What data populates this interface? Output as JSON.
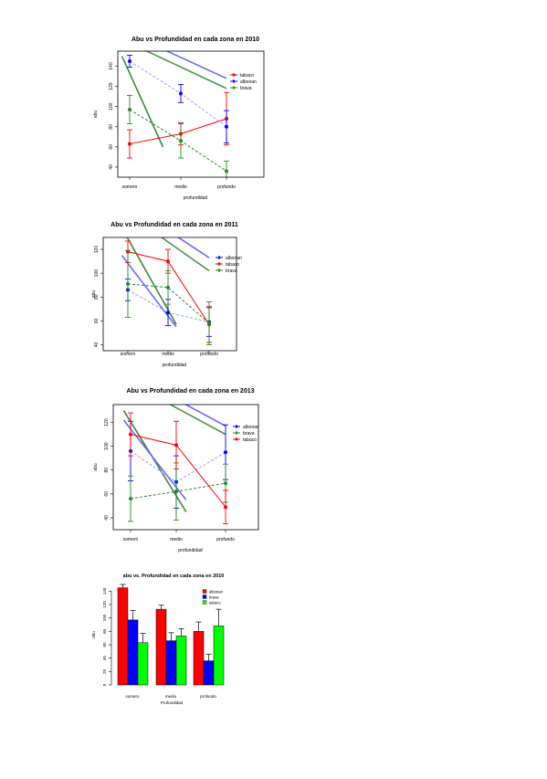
{
  "chart_data": [
    {
      "type": "line",
      "title": "Abu vs Profundidad en cada zona en 2010",
      "xlabel": "profundidad",
      "ylabel": "abu",
      "categories": [
        "somero",
        "medio",
        "profundo"
      ],
      "ylim": [
        30,
        155
      ],
      "yticks": [
        40,
        60,
        80,
        100,
        120,
        140
      ],
      "legend_position": "top-right",
      "series": [
        {
          "name": "tabaco",
          "color": "#ff0000",
          "dash": false,
          "values": [
            63,
            73,
            88
          ],
          "err": [
            14,
            11,
            26
          ]
        },
        {
          "name": "albonan",
          "color": "#0000ff",
          "dash": true,
          "values": [
            145,
            113,
            80
          ],
          "err": [
            6,
            9,
            16
          ]
        },
        {
          "name": "brava",
          "color": "#228b22",
          "dash": true,
          "values": [
            97,
            66,
            36
          ],
          "err": [
            14,
            17,
            10
          ]
        }
      ],
      "trend_lines": [
        {
          "color": "#6a6aff",
          "from": [
            1,
            172
          ],
          "to": [
            3,
            128
          ]
        },
        {
          "color": "#4a9a4a",
          "from": [
            1,
            163
          ],
          "to": [
            3,
            118
          ]
        },
        {
          "color": "#3a8a3a",
          "from": [
            0.85,
            150
          ],
          "to": [
            1.65,
            60
          ]
        }
      ]
    },
    {
      "type": "line",
      "title": "Abu vs Profundidad en cada zona en 2011",
      "xlabel": "profundidad",
      "ylabel": "abu",
      "categories": [
        "somero",
        "medio",
        "profundo"
      ],
      "ylim": [
        35,
        130
      ],
      "yticks": [
        40,
        60,
        80,
        100,
        120
      ],
      "legend_position": "top-right",
      "series": [
        {
          "name": "albonan",
          "color": "#0000ff",
          "dash": true,
          "values": [
            86,
            67,
            59
          ],
          "err": [
            9,
            11,
            12
          ]
        },
        {
          "name": "tabaco",
          "color": "#ff0000",
          "dash": false,
          "values": [
            118,
            110,
            57
          ],
          "err": [
            9,
            10,
            15
          ]
        },
        {
          "name": "brava",
          "color": "#228b22",
          "dash": true,
          "values": [
            91,
            88,
            58
          ],
          "err": [
            28,
            14,
            18
          ]
        }
      ],
      "trend_lines": [
        {
          "color": "#6a6aff",
          "from": [
            1,
            158
          ],
          "to": [
            3,
            113
          ]
        },
        {
          "color": "#4a9a4a",
          "from": [
            1,
            150
          ],
          "to": [
            3,
            102
          ]
        },
        {
          "color": "#3a8a3a",
          "from": [
            0.85,
            138
          ],
          "to": [
            2.2,
            57
          ]
        },
        {
          "color": "#6a6aff",
          "from": [
            0.85,
            115
          ],
          "to": [
            2.2,
            55
          ]
        }
      ]
    },
    {
      "type": "line",
      "title": "Abu vs Profundidad en cada zona en 2013",
      "xlabel": "profundidad",
      "ylabel": "abu",
      "categories": [
        "somero",
        "medio",
        "profundo"
      ],
      "ylim": [
        30,
        135
      ],
      "yticks": [
        40,
        60,
        80,
        100,
        120
      ],
      "legend_position": "top-right",
      "series": [
        {
          "name": "albonan",
          "color": "#0000ff",
          "dash": true,
          "values": [
            96,
            70,
            95
          ],
          "err": [
            25,
            22,
            23
          ]
        },
        {
          "name": "brava",
          "color": "#228b22",
          "dash": true,
          "values": [
            56,
            62,
            69
          ],
          "err": [
            19,
            24,
            16
          ]
        },
        {
          "name": "tabaco",
          "color": "#ff0000",
          "dash": false,
          "values": [
            110,
            101,
            49
          ],
          "err": [
            18,
            20,
            14
          ]
        }
      ],
      "trend_lines": [
        {
          "color": "#6a6aff",
          "from": [
            1,
            160
          ],
          "to": [
            3,
            117
          ]
        },
        {
          "color": "#4a9a4a",
          "from": [
            1,
            153
          ],
          "to": [
            3,
            110
          ]
        },
        {
          "color": "#3a8a3a",
          "from": [
            0.85,
            130
          ],
          "to": [
            2.2,
            45
          ]
        },
        {
          "color": "#6a6aff",
          "from": [
            0.85,
            122
          ],
          "to": [
            2.2,
            55
          ]
        }
      ]
    },
    {
      "type": "bar",
      "title": "abu vs. Profundidad en cada zona en 2010",
      "xlabel": "Profundidad",
      "ylabel": "abu",
      "categories": [
        "somero",
        "medio",
        "profundo"
      ],
      "ylim": [
        0,
        150
      ],
      "yticks": [
        0,
        20,
        40,
        60,
        80,
        100,
        120,
        140
      ],
      "legend_position": "top-right",
      "series": [
        {
          "name": "albonan",
          "color": "#ff0000",
          "values": [
            145,
            113,
            80
          ],
          "err": [
            5,
            6,
            14
          ]
        },
        {
          "name": "brava",
          "color": "#0000ff",
          "values": [
            97,
            66,
            36
          ],
          "err": [
            14,
            12,
            10
          ]
        },
        {
          "name": "tabaco",
          "color": "#00ff00",
          "values": [
            63,
            73,
            88
          ],
          "err": [
            14,
            11,
            25
          ]
        }
      ]
    }
  ]
}
